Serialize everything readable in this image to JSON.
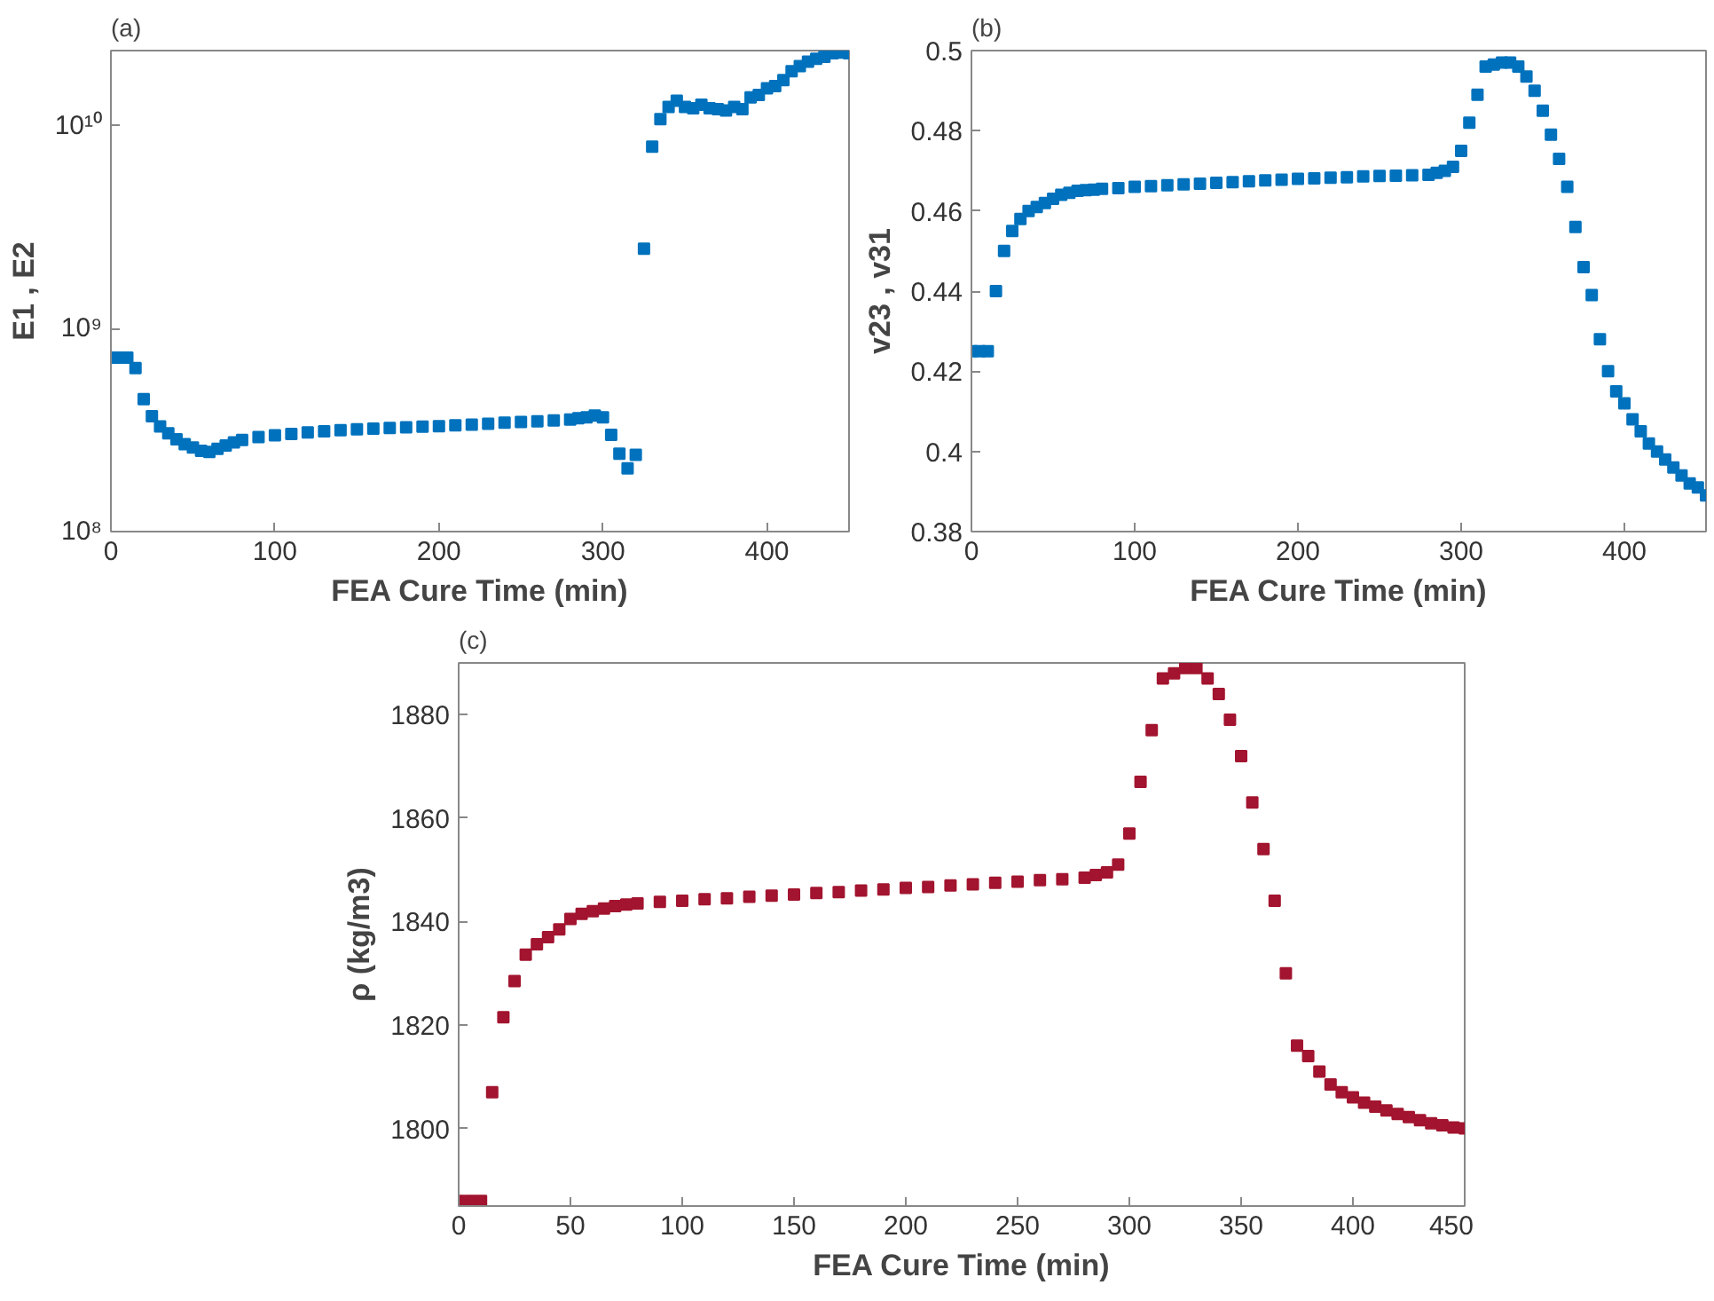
{
  "chart_data": [
    {
      "type": "scatter",
      "title": "(a)",
      "xlabel": "FEA Cure Time (min)",
      "ylabel": "E1 , E2",
      "log": "y",
      "marker": "square",
      "grid": false,
      "x": [
        0,
        5,
        10,
        15,
        20,
        25,
        30,
        35,
        40,
        45,
        50,
        55,
        60,
        65,
        70,
        75,
        80,
        90,
        100,
        110,
        120,
        130,
        140,
        150,
        160,
        170,
        180,
        190,
        200,
        210,
        220,
        230,
        240,
        250,
        260,
        270,
        280,
        285,
        290,
        295,
        300,
        305,
        310,
        315,
        320,
        325,
        330,
        335,
        340,
        345,
        350,
        355,
        360,
        365,
        370,
        375,
        380,
        385,
        390,
        395,
        400,
        405,
        410,
        415,
        420,
        425,
        430,
        435,
        440,
        445,
        450
      ],
      "series": [
        {
          "color": "#0072bd",
          "values": [
            720000000.0,
            720000000.0,
            720000000.0,
            640000000.0,
            450000000.0,
            370000000.0,
            330000000.0,
            305000000.0,
            285000000.0,
            270000000.0,
            260000000.0,
            250000000.0,
            247000000.0,
            256000000.0,
            266000000.0,
            275000000.0,
            283000000.0,
            292000000.0,
            298000000.0,
            303000000.0,
            308000000.0,
            312000000.0,
            316000000.0,
            319000000.0,
            322000000.0,
            324000000.0,
            327000000.0,
            329000000.0,
            331000000.0,
            334000000.0,
            337000000.0,
            340000000.0,
            344000000.0,
            347000000.0,
            350000000.0,
            353000000.0,
            357000000.0,
            362000000.0,
            366000000.0,
            373000000.0,
            366000000.0,
            300000000.0,
            242000000.0,
            205000000.0,
            239000000.0,
            2480000000.0,
            7900000000.0,
            10800000000.0,
            12400000000.0,
            13300000000.0,
            12400000000.0,
            12200000000.0,
            12700000000.0,
            12200000000.0,
            12100000000.0,
            11900000000.0,
            12400000000.0,
            12100000000.0,
            13800000000.0,
            14200000000.0,
            15300000000.0,
            15700000000.0,
            16800000000.0,
            18600000000.0,
            19700000000.0,
            20700000000.0,
            21400000000.0,
            21900000000.0,
            22800000000.0,
            23000000000.0,
            22800000000.0
          ]
        }
      ],
      "xlim": [
        0,
        450
      ],
      "xticks": [
        0,
        100,
        200,
        300,
        400
      ],
      "ylim": [
        100000000.0,
        23500000000.0
      ],
      "yticks": [
        {
          "value": 100000000.0,
          "label": "10⁸"
        },
        {
          "value": 1000000000.0,
          "label": "10⁹"
        },
        {
          "value": 10000000000.0,
          "label": "10¹⁰"
        }
      ]
    },
    {
      "type": "scatter",
      "title": "(b)",
      "xlabel": "FEA Cure Time (min)",
      "ylabel": "v23 , v31",
      "marker": "square",
      "grid": false,
      "x": [
        0,
        5,
        10,
        15,
        20,
        25,
        30,
        35,
        40,
        45,
        50,
        55,
        60,
        65,
        70,
        75,
        80,
        90,
        100,
        110,
        120,
        130,
        140,
        150,
        160,
        170,
        180,
        190,
        200,
        210,
        220,
        230,
        240,
        250,
        260,
        270,
        280,
        285,
        290,
        295,
        300,
        305,
        310,
        315,
        320,
        325,
        330,
        335,
        340,
        345,
        350,
        355,
        360,
        365,
        370,
        375,
        380,
        385,
        390,
        395,
        400,
        405,
        410,
        415,
        420,
        425,
        430,
        435,
        440,
        445,
        450
      ],
      "series": [
        {
          "color": "#0072bd",
          "values": [
            0.425,
            0.425,
            0.425,
            0.44,
            0.45,
            0.455,
            0.458,
            0.46,
            0.461,
            0.462,
            0.463,
            0.464,
            0.4645,
            0.465,
            0.4652,
            0.4653,
            0.4655,
            0.4657,
            0.466,
            0.4662,
            0.4664,
            0.4666,
            0.4668,
            0.467,
            0.4672,
            0.4674,
            0.4676,
            0.4678,
            0.468,
            0.4681,
            0.4683,
            0.4684,
            0.4686,
            0.4687,
            0.4688,
            0.4689,
            0.469,
            0.4695,
            0.47,
            0.471,
            0.475,
            0.482,
            0.489,
            0.496,
            0.4965,
            0.497,
            0.497,
            0.496,
            0.4935,
            0.49,
            0.485,
            0.479,
            0.473,
            0.466,
            0.456,
            0.446,
            0.439,
            0.428,
            0.42,
            0.415,
            0.412,
            0.408,
            0.405,
            0.402,
            0.4,
            0.398,
            0.396,
            0.394,
            0.392,
            0.391,
            0.389
          ]
        }
      ],
      "xlim": [
        0,
        450
      ],
      "xticks": [
        0,
        100,
        200,
        300,
        400
      ],
      "ylim": [
        0.38,
        0.5
      ],
      "yticks": [
        0.38,
        0.4,
        0.42,
        0.44,
        0.46,
        0.48,
        0.5
      ]
    },
    {
      "type": "scatter",
      "title": "(c)",
      "xlabel": "FEA Cure Time (min)",
      "ylabel": "ρ (kg/m3)",
      "marker": "square",
      "grid": false,
      "x": [
        0,
        5,
        10,
        15,
        20,
        25,
        30,
        35,
        40,
        45,
        50,
        55,
        60,
        65,
        70,
        75,
        80,
        90,
        100,
        110,
        120,
        130,
        140,
        150,
        160,
        170,
        180,
        190,
        200,
        210,
        220,
        230,
        240,
        250,
        260,
        270,
        280,
        285,
        290,
        295,
        300,
        305,
        310,
        315,
        320,
        325,
        330,
        335,
        340,
        345,
        350,
        355,
        360,
        365,
        370,
        375,
        380,
        385,
        390,
        395,
        400,
        405,
        410,
        415,
        420,
        425,
        430,
        435,
        440,
        445,
        450
      ],
      "series": [
        {
          "color": "#a2142f",
          "values": [
            1786,
            1786,
            1786,
            1807,
            1821.5,
            1828.5,
            1833.6,
            1835.6,
            1837,
            1838.5,
            1840.5,
            1841.5,
            1842,
            1842.5,
            1843,
            1843.3,
            1843.5,
            1843.8,
            1844,
            1844.3,
            1844.5,
            1844.8,
            1845,
            1845.2,
            1845.5,
            1845.7,
            1846,
            1846.2,
            1846.5,
            1846.7,
            1847,
            1847.2,
            1847.5,
            1847.7,
            1848,
            1848.2,
            1848.5,
            1849,
            1849.5,
            1851,
            1857,
            1867,
            1877,
            1887,
            1888,
            1889,
            1889,
            1887,
            1884,
            1879,
            1872,
            1863,
            1854,
            1844,
            1830,
            1816,
            1814,
            1811,
            1808.5,
            1807,
            1806,
            1805,
            1804.2,
            1803.5,
            1802.8,
            1802.2,
            1801.6,
            1801,
            1800.6,
            1800.2,
            1800
          ]
        }
      ],
      "xlim": [
        0,
        450
      ],
      "xticks": [
        0,
        50,
        100,
        150,
        200,
        250,
        300,
        350,
        400,
        450
      ],
      "ylim": [
        1785,
        1890
      ],
      "yticks": [
        1800,
        1820,
        1840,
        1860,
        1880
      ]
    }
  ]
}
